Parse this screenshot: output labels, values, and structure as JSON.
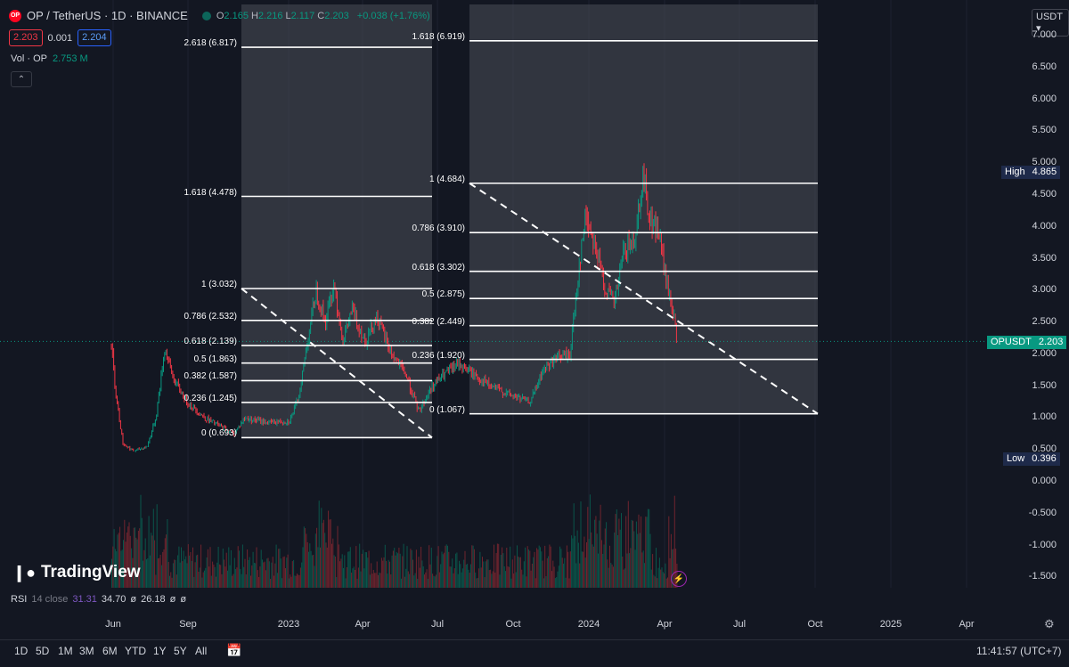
{
  "header": {
    "symbol_title": "OP / TetherUS · 1D · BINANCE",
    "logo_text": "OP",
    "ohlc": [
      {
        "key": "O",
        "value": "2.165"
      },
      {
        "key": "H",
        "value": "2.216"
      },
      {
        "key": "L",
        "value": "2.117"
      },
      {
        "key": "C",
        "value": "2.203"
      }
    ],
    "change": "+0.038 (+1.76%)",
    "sell_price": "2.203",
    "spread": "0.001",
    "buy_price": "2.204",
    "volume_label": "Vol · OP",
    "volume_value": "2.753 M",
    "collapse_icon": "chevron-up-icon"
  },
  "currency_button": "USDT",
  "price_axis": {
    "labels": [
      "7.000",
      "6.500",
      "6.000",
      "5.500",
      "5.000",
      "4.500",
      "4.000",
      "3.500",
      "3.000",
      "2.500",
      "2.000",
      "1.500",
      "1.000",
      "0.500",
      "0.000",
      "-0.500",
      "-1.000",
      "-1.500"
    ],
    "high_tag": {
      "key": "High",
      "value": "4.865"
    },
    "current_tag": {
      "key": "OPUSDT",
      "value": "2.203"
    },
    "low_tag": {
      "key": "Low",
      "value": "0.396"
    }
  },
  "fib_left": {
    "levels": [
      "2.618 (6.817)",
      "1.618 (4.478)",
      "1 (3.032)",
      "0.786 (2.532)",
      "0.618 (2.139)",
      "0.5 (1.863)",
      "0.382 (1.587)",
      "0.236 (1.245)",
      "0 (0.693)"
    ]
  },
  "fib_right": {
    "levels": [
      "1.618 (6.919)",
      "1 (4.684)",
      "0.786 (3.910)",
      "0.618 (3.302)",
      "0.5 (2.875)",
      "0.382 (2.449)",
      "0.236 (1.920)",
      "0 (1.067)"
    ]
  },
  "time_axis": [
    "Jun",
    "Sep",
    "2023",
    "Apr",
    "Jul",
    "Oct",
    "2024",
    "Apr",
    "Jul",
    "Oct",
    "2025",
    "Apr"
  ],
  "rsi": {
    "label": "RSI",
    "params": "14 close",
    "v1": "31.31",
    "v2": "34.70",
    "v3": "26.18",
    "empty": "ø"
  },
  "watermark": "TradingView",
  "timeframes": [
    "1D",
    "5D",
    "1M",
    "3M",
    "6M",
    "YTD",
    "1Y",
    "5Y",
    "All"
  ],
  "clock": "11:41:57 (UTC+7)",
  "colors": {
    "up": "#089981",
    "down": "#f23645",
    "bg": "#131722",
    "fib_zone": "#4b4e57"
  }
}
